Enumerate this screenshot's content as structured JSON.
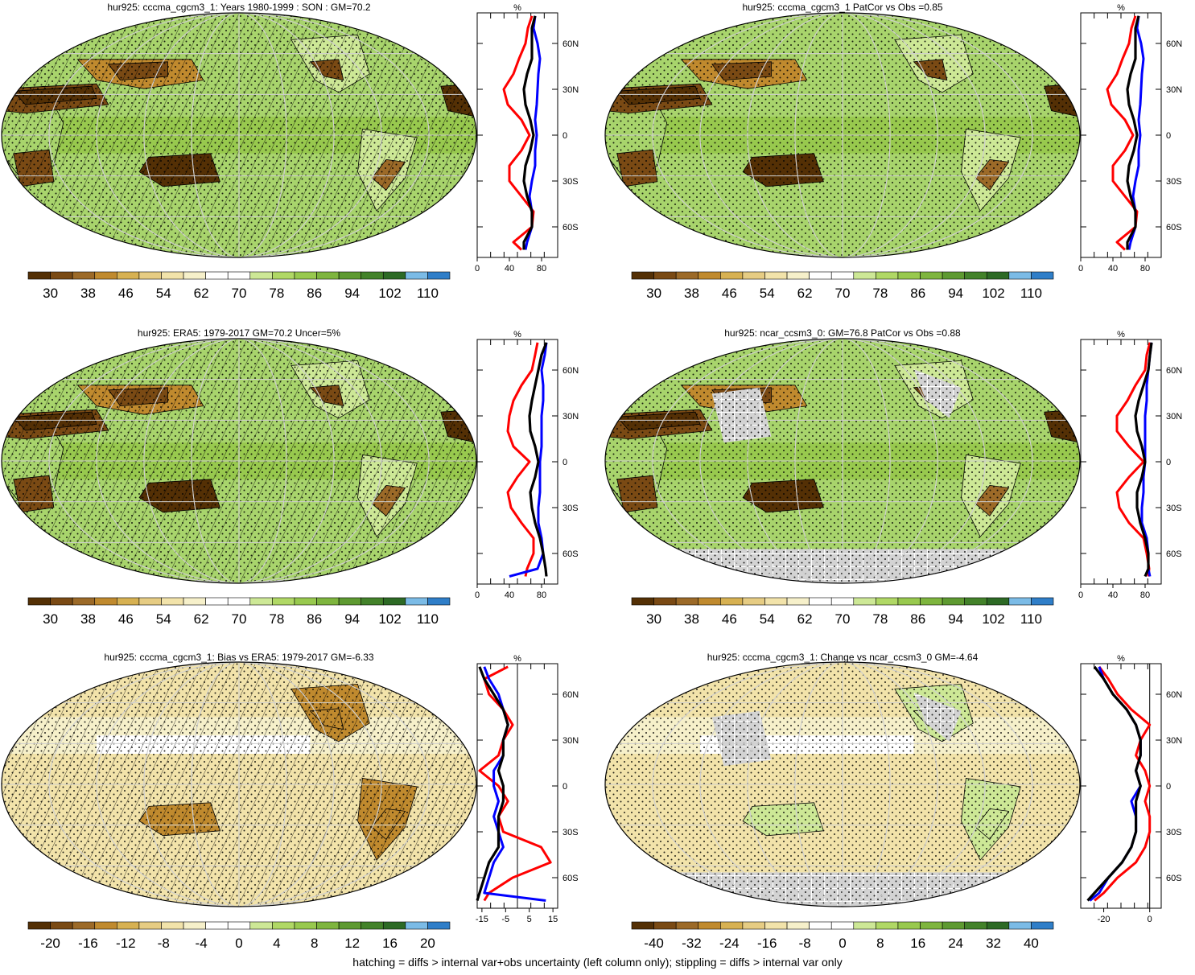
{
  "footnote": "hatching = diffs > internal var+obs uncertainty (left column only); stippling = diffs > internal var only",
  "colors": {
    "brown_to_blue": [
      "#543005",
      "#7a4a14",
      "#9c6a28",
      "#c08a2e",
      "#d7b152",
      "#e6cc83",
      "#f2e3aa",
      "#f6f0ca",
      "#ffffff",
      "#ffffff",
      "#cde896",
      "#b0d865",
      "#98c94e",
      "#7eb53e",
      "#5e9a31",
      "#43822a",
      "#2d6a25",
      "#7bbbe6",
      "#2f7ec8"
    ],
    "obs_line": "#ff0000",
    "model_line": "#0000ff",
    "mean_line": "#000000",
    "missing": "#d3d3d3",
    "ocean_base": "#a8d46c",
    "land_edge": "#000000"
  },
  "panels": [
    {
      "title": "hur925: cccma_cgcm3_1: Years 1980-1999 : SON : GM=70.2",
      "colorbar_labels": [
        "30",
        "38",
        "46",
        "54",
        "62",
        "70",
        "78",
        "86",
        "94",
        "102",
        "110"
      ],
      "profile_unit": "%",
      "profile_xticks": [
        "0",
        "40",
        "80"
      ],
      "profile_yticks": [
        "60N",
        "30N",
        "0",
        "30S",
        "60S"
      ]
    },
    {
      "title": "hur925: cccma_cgcm3_1 PatCor vs Obs =0.85",
      "colorbar_labels": [
        "30",
        "38",
        "46",
        "54",
        "62",
        "70",
        "78",
        "86",
        "94",
        "102",
        "110"
      ],
      "profile_unit": "%",
      "profile_xticks": [
        "0",
        "40",
        "80"
      ],
      "profile_yticks": [
        "60N",
        "30N",
        "0",
        "30S",
        "60S"
      ]
    },
    {
      "title": "hur925: ERA5: 1979-2017 GM=70.2 Uncer=5%",
      "colorbar_labels": [
        "30",
        "38",
        "46",
        "54",
        "62",
        "70",
        "78",
        "86",
        "94",
        "102",
        "110"
      ],
      "profile_unit": "%",
      "profile_xticks": [
        "0",
        "40",
        "80"
      ],
      "profile_yticks": [
        "60N",
        "30N",
        "0",
        "30S",
        "60S"
      ]
    },
    {
      "title": "hur925: ncar_ccsm3_0: GM=76.8 PatCor vs Obs =0.88",
      "colorbar_labels": [
        "30",
        "38",
        "46",
        "54",
        "62",
        "70",
        "78",
        "86",
        "94",
        "102",
        "110"
      ],
      "profile_unit": "%",
      "profile_xticks": [
        "0",
        "40",
        "80"
      ],
      "profile_yticks": [
        "60N",
        "30N",
        "0",
        "30S",
        "60S"
      ]
    },
    {
      "title": "hur925: cccma_cgcm3_1: Bias vs ERA5: 1979-2017  GM=-6.33",
      "colorbar_labels": [
        "-20",
        "-16",
        "-12",
        "-8",
        "-4",
        "0",
        "4",
        "8",
        "12",
        "16",
        "20"
      ],
      "profile_unit": "%",
      "profile_xticks": [
        "-15",
        "-5",
        "5",
        "15"
      ],
      "profile_yticks": [
        "60N",
        "30N",
        "0",
        "30S",
        "60S"
      ]
    },
    {
      "title": "hur925: cccma_cgcm3_1: Change vs ncar_ccsm3_0 GM=-4.64",
      "colorbar_labels": [
        "-40",
        "-32",
        "-24",
        "-16",
        "-8",
        "0",
        "8",
        "16",
        "24",
        "32",
        "40"
      ],
      "profile_unit": "%",
      "profile_xticks": [
        "-20",
        "0"
      ],
      "profile_yticks": [
        "60N",
        "30N",
        "0",
        "30S",
        "60S"
      ]
    }
  ],
  "chart_data": [
    {
      "type": "line",
      "title": "hur925: cccma_cgcm3_1: Years 1980-1999 : SON : GM=70.2",
      "xlabel": "%",
      "xlim": [
        0,
        100
      ],
      "ylim": [
        -80,
        80
      ],
      "series": [
        {
          "color": "red",
          "lat": [
            78,
            70,
            60,
            50,
            40,
            30,
            20,
            10,
            0,
            -10,
            -20,
            -30,
            -40,
            -50,
            -60,
            -70,
            -75
          ],
          "values": [
            68,
            63,
            60,
            52,
            45,
            33,
            38,
            55,
            65,
            55,
            40,
            40,
            55,
            70,
            68,
            45,
            55
          ]
        },
        {
          "color": "blue",
          "lat": [
            78,
            70,
            60,
            50,
            40,
            30,
            20,
            10,
            0,
            -10,
            -20,
            -30,
            -40,
            -50,
            -60,
            -70,
            -75
          ],
          "values": [
            72,
            70,
            75,
            78,
            76,
            75,
            74,
            72,
            74,
            72,
            72,
            68,
            65,
            68,
            68,
            62,
            60
          ]
        },
        {
          "color": "black",
          "lat": [
            78,
            70,
            60,
            50,
            40,
            30,
            20,
            10,
            0,
            -10,
            -20,
            -30,
            -40,
            -50,
            -60,
            -70,
            -75
          ],
          "values": [
            72,
            68,
            68,
            68,
            62,
            58,
            60,
            66,
            70,
            66,
            60,
            58,
            62,
            68,
            68,
            58,
            58
          ]
        }
      ]
    },
    {
      "type": "line",
      "title": "hur925: cccma_cgcm3_1 PatCor vs Obs =0.85",
      "xlabel": "%",
      "xlim": [
        0,
        100
      ],
      "ylim": [
        -80,
        80
      ],
      "series": [
        {
          "color": "red",
          "lat": [
            78,
            70,
            60,
            50,
            40,
            30,
            20,
            10,
            0,
            -10,
            -20,
            -30,
            -40,
            -50,
            -60,
            -70,
            -75
          ],
          "values": [
            68,
            63,
            60,
            52,
            45,
            33,
            38,
            55,
            65,
            55,
            40,
            40,
            55,
            70,
            68,
            45,
            55
          ]
        },
        {
          "color": "blue",
          "lat": [
            78,
            70,
            60,
            50,
            40,
            30,
            20,
            10,
            0,
            -10,
            -20,
            -30,
            -40,
            -50,
            -60,
            -70,
            -75
          ],
          "values": [
            72,
            70,
            75,
            78,
            76,
            75,
            74,
            72,
            74,
            72,
            72,
            68,
            65,
            68,
            68,
            62,
            60
          ]
        },
        {
          "color": "black",
          "lat": [
            78,
            70,
            60,
            50,
            40,
            30,
            20,
            10,
            0,
            -10,
            -20,
            -30,
            -40,
            -50,
            -60,
            -70,
            -75
          ],
          "values": [
            72,
            68,
            68,
            68,
            62,
            58,
            60,
            66,
            70,
            66,
            60,
            58,
            62,
            68,
            68,
            58,
            58
          ]
        }
      ]
    },
    {
      "type": "line",
      "title": "hur925: ERA5: 1979-2017 GM=70.2 Uncer=5%",
      "xlabel": "%",
      "xlim": [
        0,
        100
      ],
      "ylim": [
        -80,
        80
      ],
      "series": [
        {
          "color": "red",
          "lat": [
            78,
            70,
            60,
            50,
            40,
            30,
            20,
            10,
            0,
            -10,
            -20,
            -30,
            -40,
            -50,
            -60,
            -70,
            -75
          ],
          "values": [
            75,
            72,
            68,
            55,
            45,
            40,
            38,
            45,
            65,
            50,
            38,
            42,
            55,
            70,
            70,
            62,
            60
          ]
        },
        {
          "color": "blue",
          "lat": [
            78,
            70,
            60,
            50,
            40,
            30,
            20,
            10,
            0,
            -10,
            -20,
            -30,
            -40,
            -50,
            -60,
            -70,
            -75
          ],
          "values": [
            86,
            84,
            80,
            82,
            82,
            80,
            80,
            80,
            78,
            78,
            78,
            76,
            76,
            80,
            82,
            75,
            40
          ]
        },
        {
          "color": "black",
          "lat": [
            78,
            70,
            60,
            50,
            40,
            30,
            20,
            10,
            0,
            -10,
            -20,
            -30,
            -40,
            -50,
            -60,
            -70,
            -75
          ],
          "values": [
            86,
            80,
            76,
            72,
            68,
            65,
            66,
            72,
            76,
            72,
            66,
            68,
            72,
            78,
            82,
            85,
            86
          ]
        }
      ]
    },
    {
      "type": "line",
      "title": "hur925: ncar_ccsm3_0: GM=76.8 PatCor vs Obs =0.88",
      "xlabel": "%",
      "xlim": [
        0,
        100
      ],
      "ylim": [
        -80,
        80
      ],
      "series": [
        {
          "color": "red",
          "lat": [
            78,
            70,
            60,
            50,
            40,
            30,
            20,
            10,
            0,
            -10,
            -20,
            -30,
            -40,
            -50,
            -60,
            -70,
            -75
          ],
          "values": [
            86,
            82,
            80,
            68,
            58,
            45,
            45,
            60,
            78,
            60,
            45,
            48,
            60,
            78,
            82,
            85,
            84
          ]
        },
        {
          "color": "blue",
          "lat": [
            78,
            70,
            60,
            50,
            40,
            30,
            20,
            10,
            0,
            -10,
            -20,
            -30,
            -40,
            -50,
            -60,
            -70,
            -75
          ],
          "values": [
            88,
            86,
            84,
            82,
            82,
            80,
            80,
            80,
            80,
            78,
            78,
            76,
            76,
            82,
            84,
            84,
            86
          ]
        },
        {
          "color": "black",
          "lat": [
            78,
            70,
            60,
            50,
            40,
            30,
            20,
            10,
            0,
            -10,
            -20,
            -30,
            -40,
            -50,
            -60,
            -70,
            -75
          ],
          "values": [
            88,
            86,
            84,
            78,
            72,
            68,
            70,
            76,
            80,
            76,
            70,
            70,
            74,
            80,
            84,
            84,
            80
          ]
        }
      ]
    },
    {
      "type": "line",
      "title": "hur925: cccma_cgcm3_1: Bias vs ERA5: 1979-2017  GM=-6.33",
      "xlabel": "%",
      "xlim": [
        -17,
        17
      ],
      "ylim": [
        -80,
        80
      ],
      "series": [
        {
          "color": "red",
          "lat": [
            78,
            70,
            60,
            50,
            40,
            30,
            20,
            10,
            0,
            -10,
            -20,
            -30,
            -40,
            -50,
            -60,
            -70,
            -75
          ],
          "values": [
            -4,
            -14,
            -12,
            -6,
            -2,
            -6,
            -8,
            -16,
            -8,
            -4,
            -8,
            -6,
            10,
            14,
            -2,
            -12,
            -14
          ]
        },
        {
          "color": "blue",
          "lat": [
            78,
            70,
            60,
            50,
            40,
            30,
            20,
            10,
            0,
            -10,
            -20,
            -30,
            -40,
            -50,
            -60,
            -70,
            -75
          ],
          "values": [
            -14,
            -12,
            -8,
            -6,
            -4,
            -6,
            -6,
            -10,
            -10,
            -8,
            -10,
            -8,
            -6,
            -10,
            -12,
            -14,
            12
          ]
        },
        {
          "color": "black",
          "lat": [
            78,
            70,
            60,
            50,
            40,
            30,
            20,
            10,
            0,
            -10,
            -20,
            -30,
            -40,
            -50,
            -60,
            -70,
            -75
          ],
          "values": [
            -16,
            -14,
            -10,
            -6,
            -4,
            -6,
            -6,
            -8,
            -6,
            -6,
            -8,
            -8,
            -8,
            -12,
            -14,
            -16,
            -17
          ]
        }
      ]
    },
    {
      "type": "line",
      "title": "hur925: cccma_cgcm3_1: Change vs ncar_ccsm3_0 GM=-4.64",
      "xlabel": "%",
      "xlim": [
        -30,
        5
      ],
      "ylim": [
        -80,
        80
      ],
      "series": [
        {
          "color": "red",
          "lat": [
            78,
            70,
            60,
            50,
            40,
            30,
            20,
            10,
            0,
            -10,
            -20,
            -30,
            -40,
            -50,
            -60,
            -70,
            -75
          ],
          "values": [
            -22,
            -18,
            -14,
            -8,
            0,
            -4,
            -6,
            -2,
            0,
            -2,
            0,
            0,
            -2,
            -6,
            -14,
            -20,
            -24
          ]
        },
        {
          "color": "blue",
          "lat": [
            78,
            70,
            60,
            50,
            40,
            30,
            20,
            10,
            0,
            -10,
            -20,
            -30,
            -40,
            -50,
            -60,
            -70,
            -75
          ],
          "values": [
            -22,
            -20,
            -16,
            -10,
            -6,
            -4,
            -4,
            -6,
            -4,
            -8,
            -6,
            -6,
            -8,
            -12,
            -18,
            -22,
            -26
          ]
        },
        {
          "color": "black",
          "lat": [
            78,
            70,
            60,
            50,
            40,
            30,
            20,
            10,
            0,
            -10,
            -20,
            -30,
            -40,
            -50,
            -60,
            -70,
            -75
          ],
          "values": [
            -24,
            -20,
            -16,
            -10,
            -6,
            -4,
            -4,
            -6,
            -4,
            -6,
            -6,
            -6,
            -8,
            -12,
            -18,
            -24,
            -27
          ]
        }
      ]
    }
  ]
}
